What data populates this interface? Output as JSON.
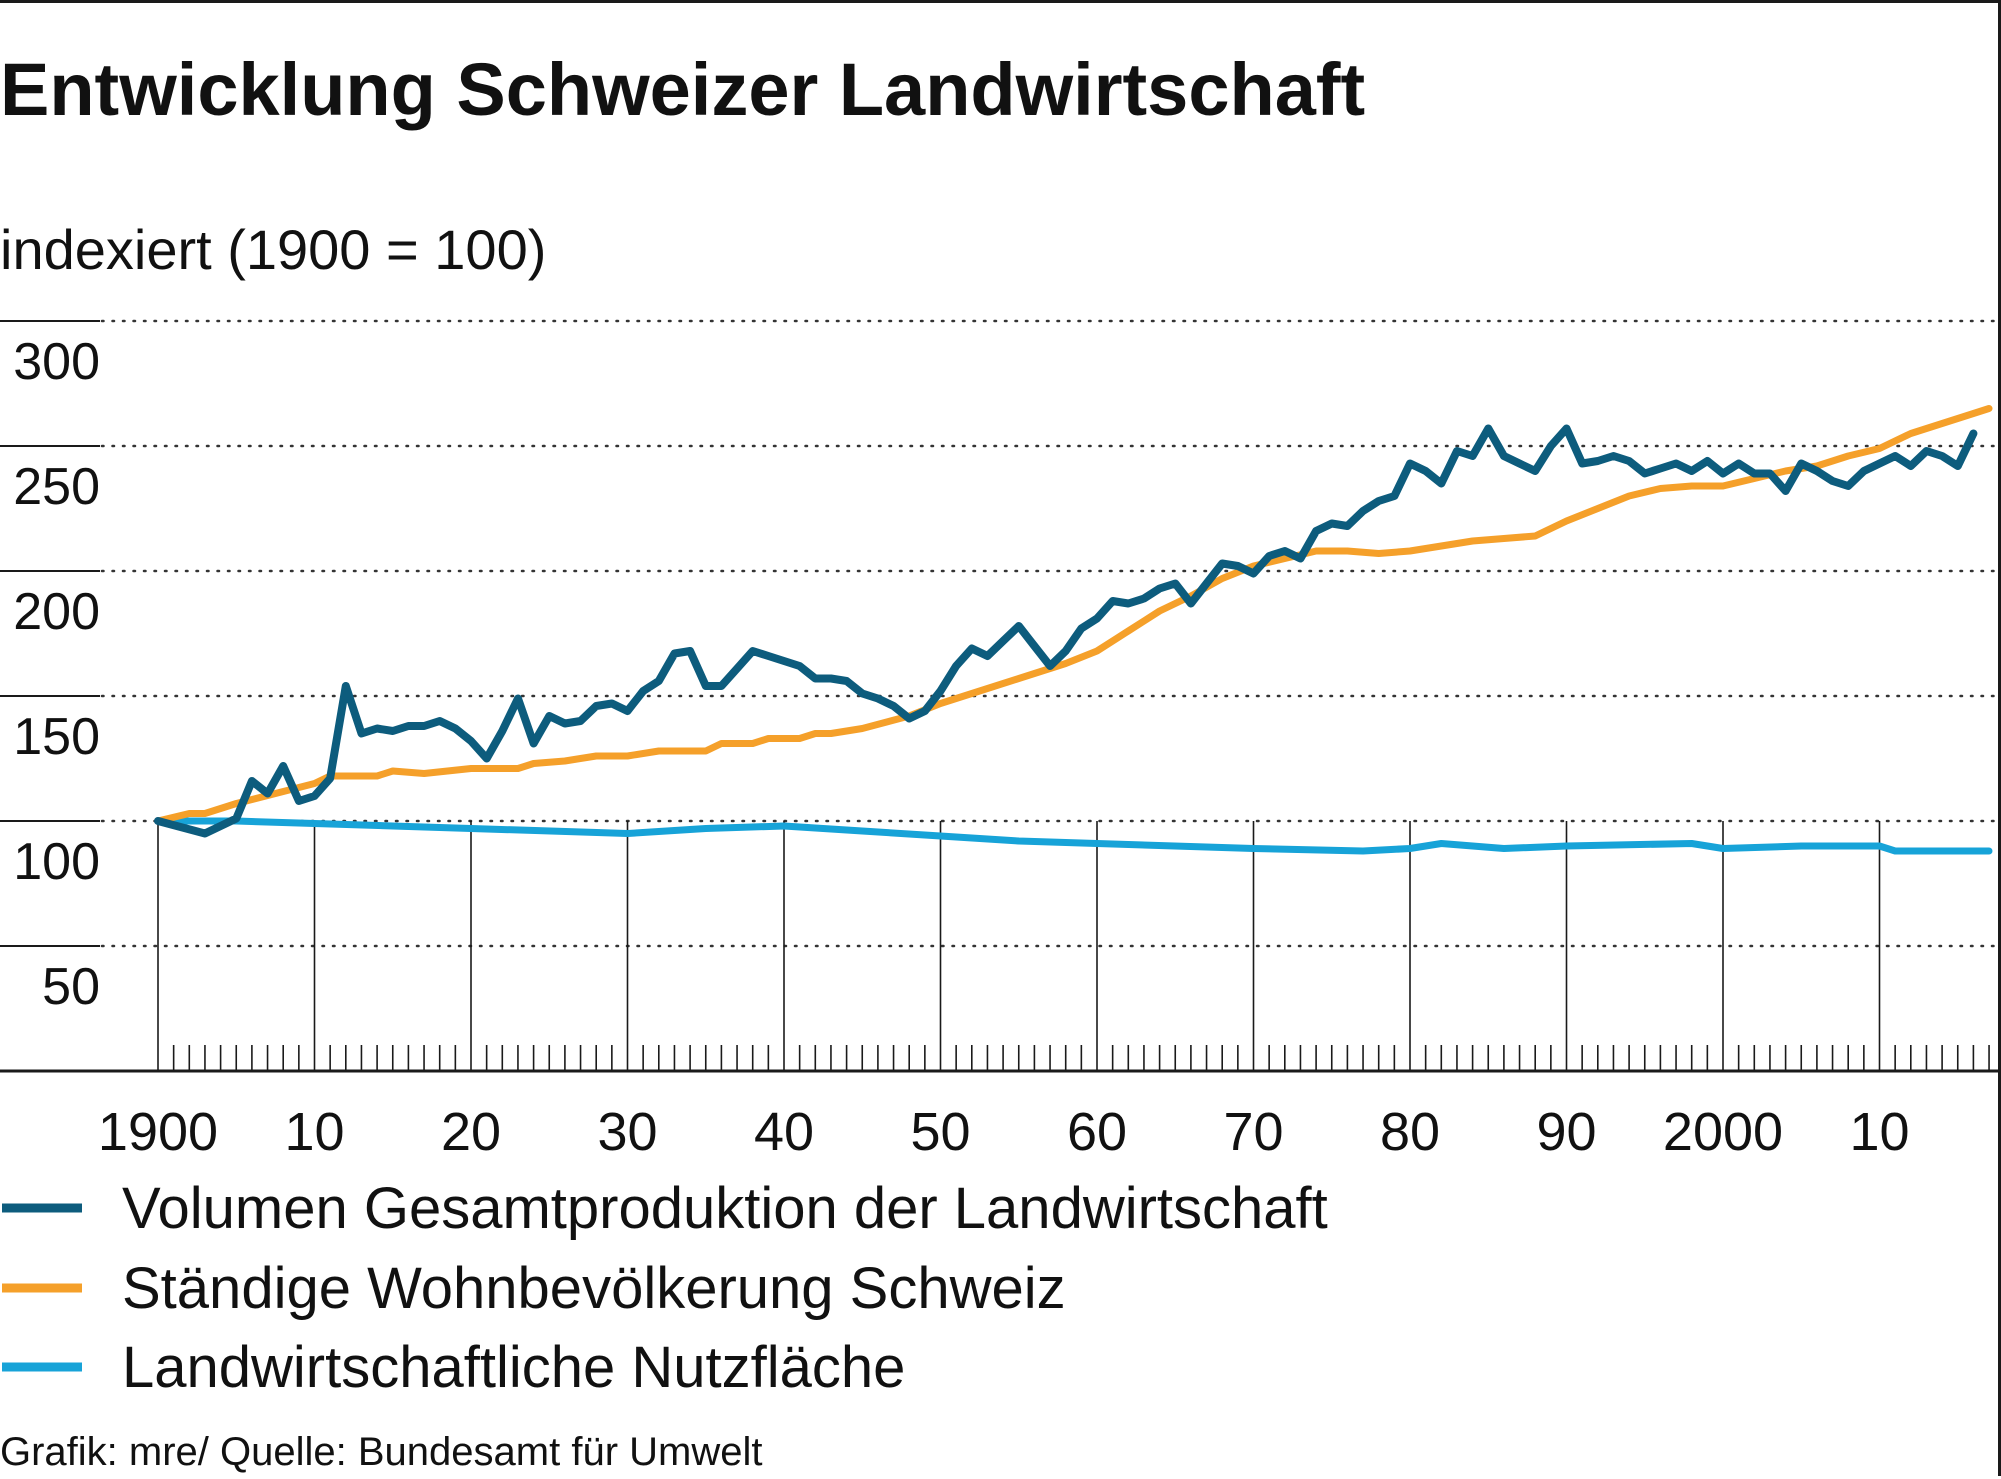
{
  "chart_data": {
    "type": "line",
    "title": "Entwicklung Schweizer Landwirtschaft",
    "subtitle": "indexiert (1900 = 100)",
    "ylim": [
      0,
      300
    ],
    "xlim": [
      1900,
      2017
    ],
    "y_ticks": [
      300,
      250,
      200,
      150,
      100,
      50
    ],
    "x_ticks": [
      {
        "year": 1900,
        "label": "1900"
      },
      {
        "year": 1910,
        "label": "10"
      },
      {
        "year": 1920,
        "label": "20"
      },
      {
        "year": 1930,
        "label": "30"
      },
      {
        "year": 1940,
        "label": "40"
      },
      {
        "year": 1950,
        "label": "50"
      },
      {
        "year": 1960,
        "label": "60"
      },
      {
        "year": 1970,
        "label": "70"
      },
      {
        "year": 1980,
        "label": "80"
      },
      {
        "year": 1990,
        "label": "90"
      },
      {
        "year": 2000,
        "label": "2000"
      },
      {
        "year": 2010,
        "label": "10"
      }
    ],
    "grid": "dotted-horizontal",
    "legend_position": "bottom",
    "series": [
      {
        "name": "Volumen Gesamtproduktion der Landwirtschaft",
        "color": "#0d5c7d",
        "points": [
          [
            1900,
            100
          ],
          [
            1903,
            95
          ],
          [
            1905,
            101
          ],
          [
            1906,
            116
          ],
          [
            1907,
            111
          ],
          [
            1908,
            122
          ],
          [
            1909,
            108
          ],
          [
            1910,
            110
          ],
          [
            1911,
            117
          ],
          [
            1912,
            154
          ],
          [
            1913,
            135
          ],
          [
            1914,
            137
          ],
          [
            1915,
            136
          ],
          [
            1916,
            138
          ],
          [
            1917,
            138
          ],
          [
            1918,
            140
          ],
          [
            1919,
            137
          ],
          [
            1920,
            132
          ],
          [
            1921,
            125
          ],
          [
            1922,
            136
          ],
          [
            1923,
            149
          ],
          [
            1924,
            131
          ],
          [
            1925,
            142
          ],
          [
            1926,
            139
          ],
          [
            1927,
            140
          ],
          [
            1928,
            146
          ],
          [
            1929,
            147
          ],
          [
            1930,
            144
          ],
          [
            1931,
            152
          ],
          [
            1932,
            156
          ],
          [
            1933,
            167
          ],
          [
            1934,
            168
          ],
          [
            1935,
            154
          ],
          [
            1936,
            154
          ],
          [
            1937,
            161
          ],
          [
            1938,
            168
          ],
          [
            1939,
            166
          ],
          [
            1940,
            164
          ],
          [
            1941,
            162
          ],
          [
            1942,
            157
          ],
          [
            1943,
            157
          ],
          [
            1944,
            156
          ],
          [
            1945,
            151
          ],
          [
            1946,
            149
          ],
          [
            1947,
            146
          ],
          [
            1948,
            141
          ],
          [
            1949,
            144
          ],
          [
            1950,
            152
          ],
          [
            1951,
            162
          ],
          [
            1952,
            169
          ],
          [
            1953,
            166
          ],
          [
            1954,
            172
          ],
          [
            1955,
            178
          ],
          [
            1956,
            170
          ],
          [
            1957,
            162
          ],
          [
            1958,
            168
          ],
          [
            1959,
            177
          ],
          [
            1960,
            181
          ],
          [
            1961,
            188
          ],
          [
            1962,
            187
          ],
          [
            1963,
            189
          ],
          [
            1964,
            193
          ],
          [
            1965,
            195
          ],
          [
            1966,
            187
          ],
          [
            1967,
            195
          ],
          [
            1968,
            203
          ],
          [
            1969,
            202
          ],
          [
            1970,
            199
          ],
          [
            1971,
            206
          ],
          [
            1972,
            208
          ],
          [
            1973,
            205
          ],
          [
            1974,
            216
          ],
          [
            1975,
            219
          ],
          [
            1976,
            218
          ],
          [
            1977,
            224
          ],
          [
            1978,
            228
          ],
          [
            1979,
            230
          ],
          [
            1980,
            243
          ],
          [
            1981,
            240
          ],
          [
            1982,
            235
          ],
          [
            1983,
            248
          ],
          [
            1984,
            246
          ],
          [
            1985,
            257
          ],
          [
            1986,
            246
          ],
          [
            1987,
            243
          ],
          [
            1988,
            240
          ],
          [
            1989,
            250
          ],
          [
            1990,
            257
          ],
          [
            1991,
            243
          ],
          [
            1992,
            244
          ],
          [
            1993,
            246
          ],
          [
            1994,
            244
          ],
          [
            1995,
            239
          ],
          [
            1996,
            241
          ],
          [
            1997,
            243
          ],
          [
            1998,
            240
          ],
          [
            1999,
            244
          ],
          [
            2000,
            239
          ],
          [
            2001,
            243
          ],
          [
            2002,
            239
          ],
          [
            2003,
            239
          ],
          [
            2004,
            232
          ],
          [
            2005,
            243
          ],
          [
            2006,
            240
          ],
          [
            2007,
            236
          ],
          [
            2008,
            234
          ],
          [
            2009,
            240
          ],
          [
            2010,
            243
          ],
          [
            2011,
            246
          ],
          [
            2012,
            242
          ],
          [
            2013,
            248
          ],
          [
            2014,
            246
          ],
          [
            2015,
            242
          ],
          [
            2016,
            255
          ]
        ]
      },
      {
        "name": "Ständige Wohnbevölkerung Schweiz",
        "color": "#f5a02a",
        "points": [
          [
            1900,
            100
          ],
          [
            1902,
            103
          ],
          [
            1903,
            103
          ],
          [
            1905,
            107
          ],
          [
            1910,
            115
          ],
          [
            1911,
            118
          ],
          [
            1914,
            118
          ],
          [
            1915,
            120
          ],
          [
            1917,
            119
          ],
          [
            1920,
            121
          ],
          [
            1923,
            121
          ],
          [
            1924,
            123
          ],
          [
            1926,
            124
          ],
          [
            1928,
            126
          ],
          [
            1930,
            126
          ],
          [
            1932,
            128
          ],
          [
            1935,
            128
          ],
          [
            1936,
            131
          ],
          [
            1938,
            131
          ],
          [
            1939,
            133
          ],
          [
            1941,
            133
          ],
          [
            1942,
            135
          ],
          [
            1943,
            135
          ],
          [
            1945,
            137
          ],
          [
            1948,
            142
          ],
          [
            1950,
            147
          ],
          [
            1952,
            151
          ],
          [
            1955,
            157
          ],
          [
            1958,
            163
          ],
          [
            1960,
            168
          ],
          [
            1962,
            176
          ],
          [
            1964,
            184
          ],
          [
            1966,
            190
          ],
          [
            1968,
            197
          ],
          [
            1970,
            202
          ],
          [
            1972,
            205
          ],
          [
            1974,
            208
          ],
          [
            1976,
            208
          ],
          [
            1978,
            207
          ],
          [
            1980,
            208
          ],
          [
            1982,
            210
          ],
          [
            1984,
            212
          ],
          [
            1986,
            213
          ],
          [
            1988,
            214
          ],
          [
            1990,
            220
          ],
          [
            1992,
            225
          ],
          [
            1994,
            230
          ],
          [
            1996,
            233
          ],
          [
            1998,
            234
          ],
          [
            2000,
            234
          ],
          [
            2002,
            237
          ],
          [
            2004,
            240
          ],
          [
            2006,
            242
          ],
          [
            2008,
            246
          ],
          [
            2010,
            249
          ],
          [
            2012,
            255
          ],
          [
            2014,
            259
          ],
          [
            2016,
            263
          ],
          [
            2017,
            265
          ]
        ]
      },
      {
        "name": "Landwirtschaftliche Nutzfläche",
        "color": "#17a3d8",
        "points": [
          [
            1900,
            100
          ],
          [
            1905,
            100
          ],
          [
            1910,
            99
          ],
          [
            1920,
            97
          ],
          [
            1930,
            95
          ],
          [
            1935,
            97
          ],
          [
            1940,
            98
          ],
          [
            1945,
            96
          ],
          [
            1950,
            94
          ],
          [
            1955,
            92
          ],
          [
            1960,
            91
          ],
          [
            1970,
            89
          ],
          [
            1977,
            88
          ],
          [
            1980,
            89
          ],
          [
            1982,
            91
          ],
          [
            1986,
            89
          ],
          [
            1990,
            90
          ],
          [
            1998,
            91
          ],
          [
            2000,
            89
          ],
          [
            2005,
            90
          ],
          [
            2010,
            90
          ],
          [
            2011,
            88
          ],
          [
            2017,
            88
          ]
        ]
      }
    ],
    "source": "Grafik: mre/ Quelle: Bundesamt für Umwelt"
  }
}
